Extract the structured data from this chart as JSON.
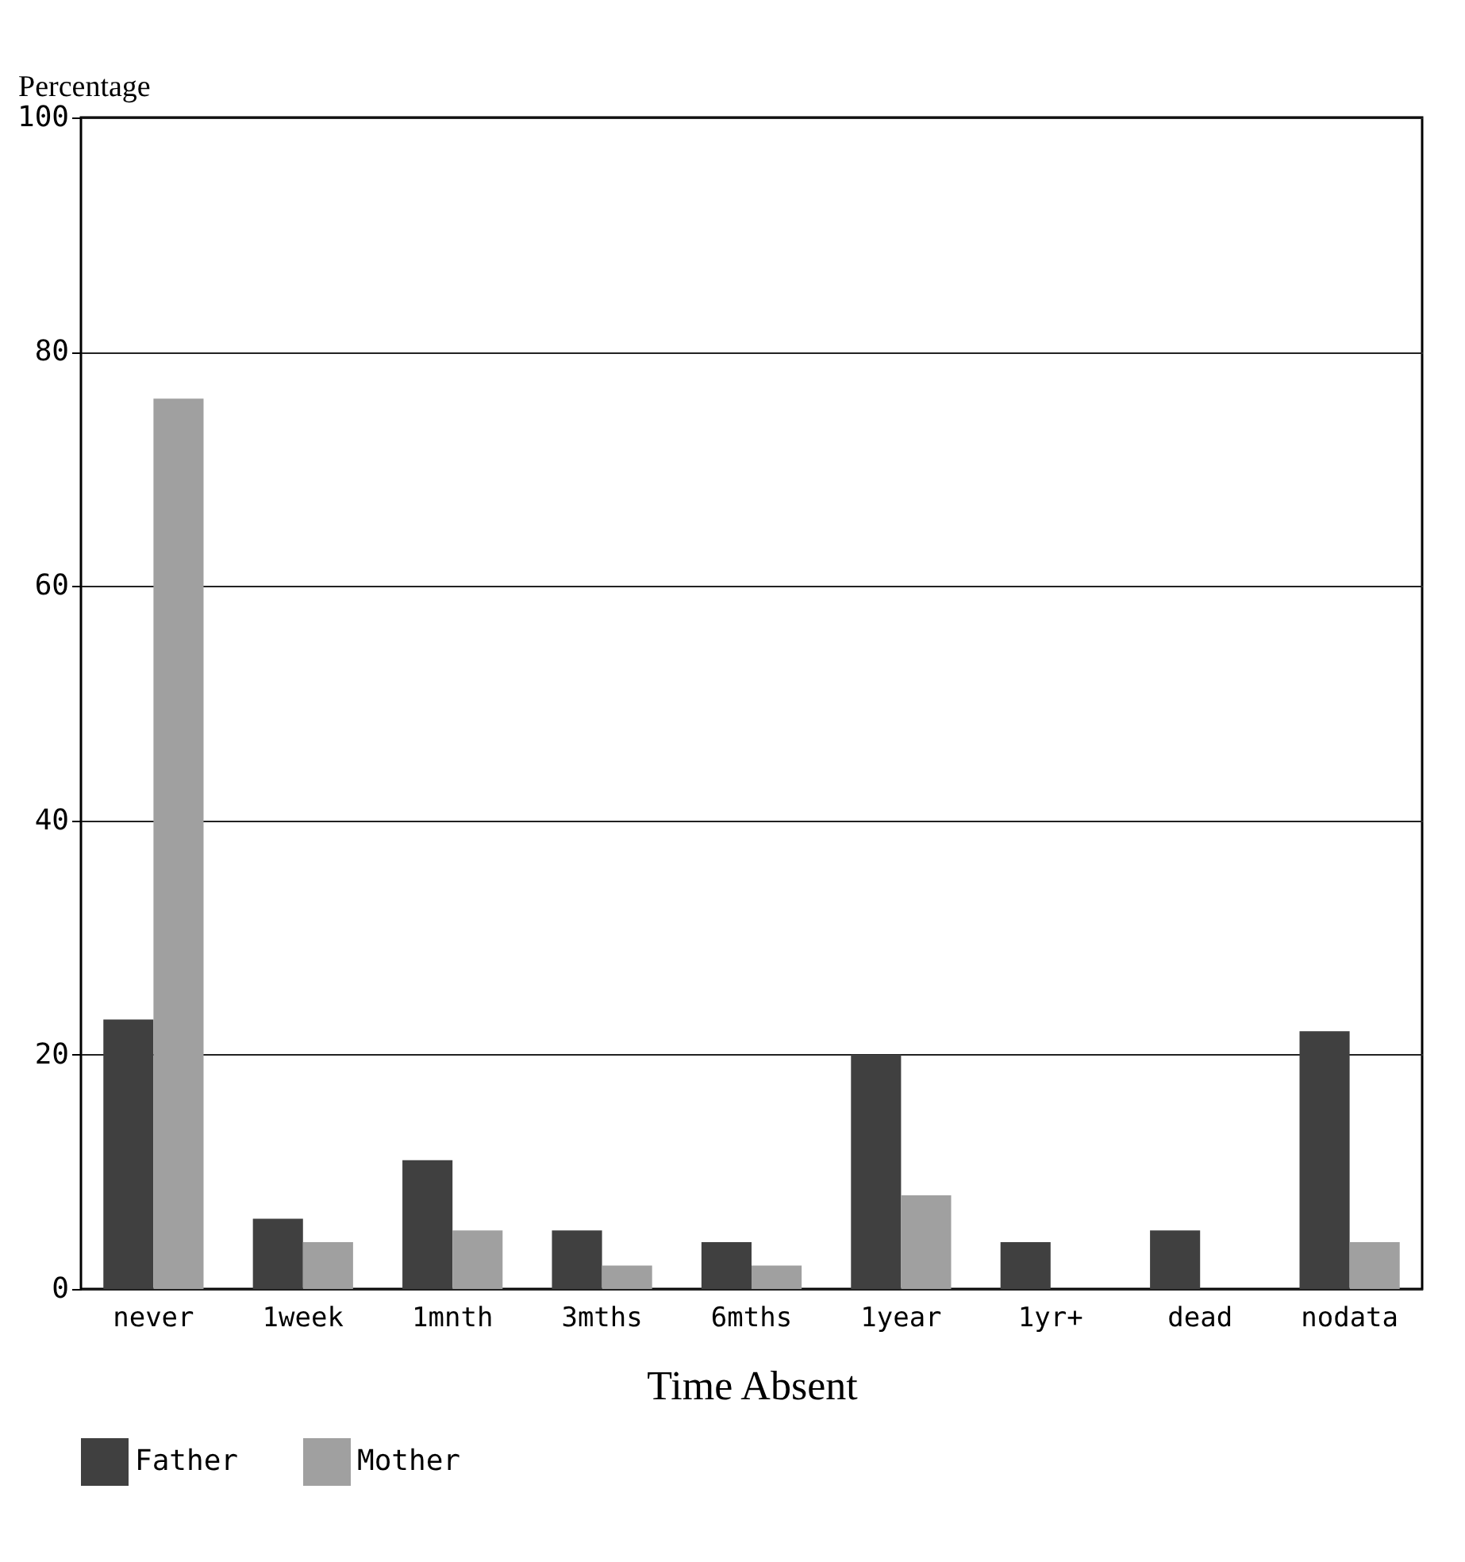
{
  "chart_data": {
    "type": "bar",
    "xlabel": "Time Absent",
    "ylabel": "Percentage",
    "categories": [
      "never",
      "1week",
      "1mnth",
      "3mths",
      "6mths",
      "1year",
      "1yr+",
      "dead",
      "nodata"
    ],
    "series": [
      {
        "name": "Father",
        "color": "#404040",
        "values": [
          23,
          6,
          11,
          5,
          4,
          20,
          4,
          5,
          22
        ]
      },
      {
        "name": "Mother",
        "color": "#a0a0a0",
        "values": [
          76,
          4,
          5,
          2,
          2,
          8,
          0,
          0,
          4
        ]
      }
    ],
    "ylim": [
      0,
      100
    ],
    "yticks": [
      0,
      20,
      40,
      60,
      80,
      100
    ],
    "grid": "y",
    "legend": "bottom"
  }
}
